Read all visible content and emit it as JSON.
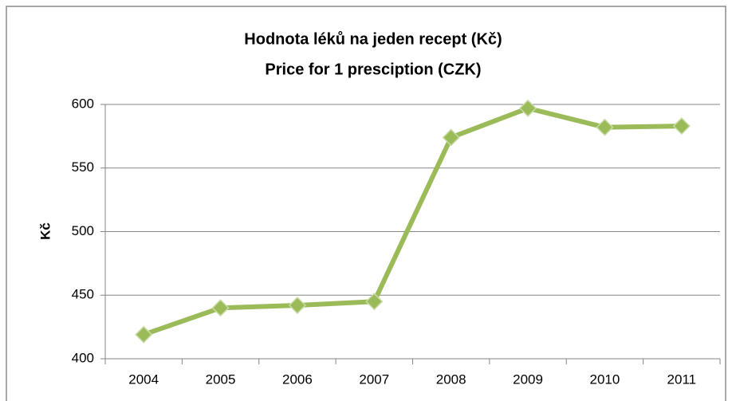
{
  "chart_data": {
    "type": "line",
    "title": "Hodnota léků na jeden recept (Kč)",
    "subtitle": "Price for 1 presciption (CZK)",
    "y_label": "Kč",
    "categories": [
      "2004",
      "2005",
      "2006",
      "2007",
      "2008",
      "2009",
      "2010",
      "2011"
    ],
    "series": [
      {
        "name": "Kč",
        "color": "#9bbb59",
        "values": [
          419,
          440,
          442,
          445,
          574,
          597,
          582,
          583
        ]
      }
    ],
    "ylim": [
      400,
      600
    ],
    "yticks": [
      400,
      450,
      500,
      550,
      600
    ],
    "grid": true
  }
}
